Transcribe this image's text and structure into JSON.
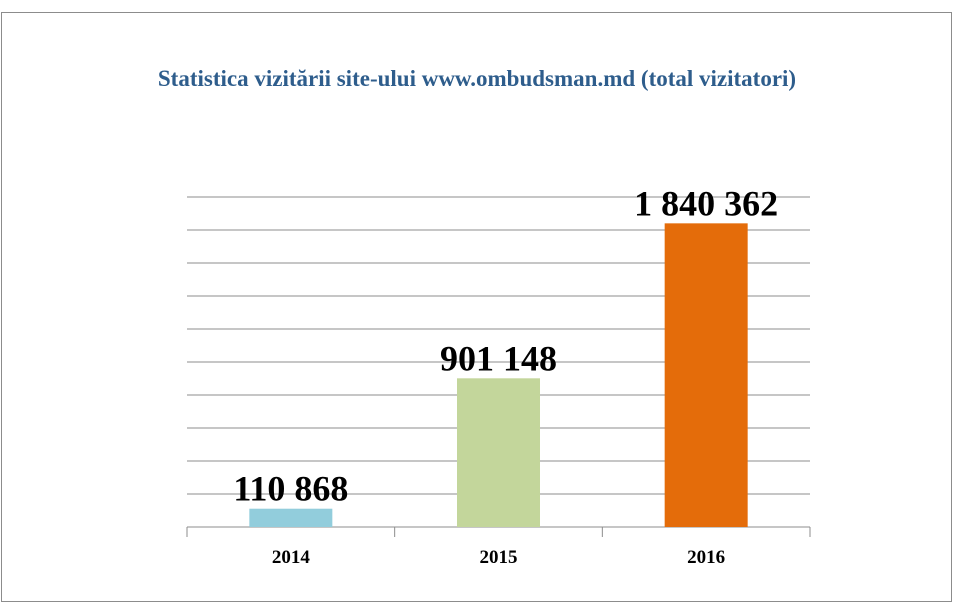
{
  "chart_data": {
    "type": "bar",
    "title": "Statistica vizitării site-ului www.ombudsman.md (total vizitatori)",
    "categories": [
      "2014",
      "2015",
      "2016"
    ],
    "values": [
      110868,
      901148,
      1840362
    ],
    "value_labels": [
      "110 868",
      "901 148",
      "1 840 362"
    ],
    "colors": [
      "#92cddc",
      "#c3d69b",
      "#e46c0a"
    ],
    "ylim": [
      0,
      2000000
    ],
    "yticks": [
      0,
      200000,
      400000,
      600000,
      800000,
      1000000,
      1200000,
      1400000,
      1600000,
      1800000,
      2000000
    ],
    "grid": true
  }
}
